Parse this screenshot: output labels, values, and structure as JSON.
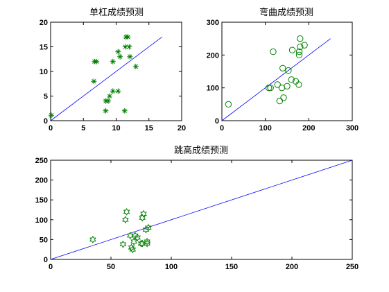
{
  "figure": {
    "background": "#ffffff"
  },
  "chart_data": [
    {
      "type": "scatter",
      "title": "单杠成绩预测",
      "xlim": [
        0,
        20
      ],
      "ylim": [
        0,
        20
      ],
      "xticks": [
        "0",
        "5",
        "10",
        "15",
        "20"
      ],
      "yticks": [
        "0",
        "5",
        "10",
        "15",
        "20"
      ],
      "grid": false,
      "marker": "asterisk",
      "marker_color": "#008000",
      "line_color": "#0000ff",
      "points": [
        [
          0.1,
          1.1
        ],
        [
          6.7,
          12
        ],
        [
          7.0,
          12
        ],
        [
          6.6,
          8
        ],
        [
          8.4,
          4
        ],
        [
          8.8,
          4
        ],
        [
          8.4,
          2
        ],
        [
          9.0,
          5
        ],
        [
          9.5,
          6
        ],
        [
          10.3,
          6
        ],
        [
          9.5,
          12
        ],
        [
          10.3,
          14
        ],
        [
          10.6,
          13
        ],
        [
          11.3,
          2
        ],
        [
          11.4,
          15
        ],
        [
          11.5,
          17
        ],
        [
          11.8,
          17
        ],
        [
          12.0,
          15
        ],
        [
          12.1,
          13
        ],
        [
          13.0,
          11
        ]
      ],
      "fit_line": [
        [
          0,
          0
        ],
        [
          17,
          17
        ]
      ]
    },
    {
      "type": "scatter",
      "title": "弯曲成绩预测",
      "xlim": [
        0,
        300
      ],
      "ylim": [
        0,
        300
      ],
      "xticks": [
        "0",
        "100",
        "200",
        "300"
      ],
      "yticks": [
        "0",
        "100",
        "200",
        "300"
      ],
      "grid": false,
      "marker": "circle",
      "marker_color": "#008000",
      "line_color": "#0000ff",
      "points": [
        [
          15,
          50
        ],
        [
          108,
          100
        ],
        [
          112,
          100
        ],
        [
          118,
          210
        ],
        [
          128,
          110
        ],
        [
          133,
          60
        ],
        [
          138,
          100
        ],
        [
          140,
          160
        ],
        [
          142,
          70
        ],
        [
          150,
          105
        ],
        [
          153,
          153
        ],
        [
          160,
          125
        ],
        [
          162,
          215
        ],
        [
          170,
          120
        ],
        [
          177,
          110
        ],
        [
          178,
          200
        ],
        [
          178,
          210
        ],
        [
          180,
          225
        ],
        [
          180,
          250
        ],
        [
          190,
          230
        ]
      ],
      "fit_line": [
        [
          0,
          0
        ],
        [
          250,
          250
        ]
      ]
    },
    {
      "type": "scatter",
      "title": "跳高成绩预测",
      "xlim": [
        0,
        250
      ],
      "ylim": [
        0,
        250
      ],
      "xticks": [
        "0",
        "50",
        "100",
        "150",
        "200",
        "250"
      ],
      "yticks": [
        "0",
        "50",
        "100",
        "150",
        "200",
        "250"
      ],
      "grid": false,
      "marker": "hexagram",
      "marker_color": "#008000",
      "line_color": "#0000ff",
      "points": [
        [
          35,
          50
        ],
        [
          60,
          38
        ],
        [
          62,
          100
        ],
        [
          63,
          120
        ],
        [
          66,
          60
        ],
        [
          67,
          30
        ],
        [
          68,
          25
        ],
        [
          69,
          45
        ],
        [
          70,
          60
        ],
        [
          72,
          55
        ],
        [
          75,
          40
        ],
        [
          76,
          40
        ],
        [
          76,
          105
        ],
        [
          77,
          115
        ],
        [
          79,
          75
        ],
        [
          80,
          40
        ],
        [
          80,
          45
        ],
        [
          81,
          80
        ]
      ],
      "fit_line": [
        [
          0,
          0
        ],
        [
          250,
          250
        ]
      ]
    }
  ]
}
